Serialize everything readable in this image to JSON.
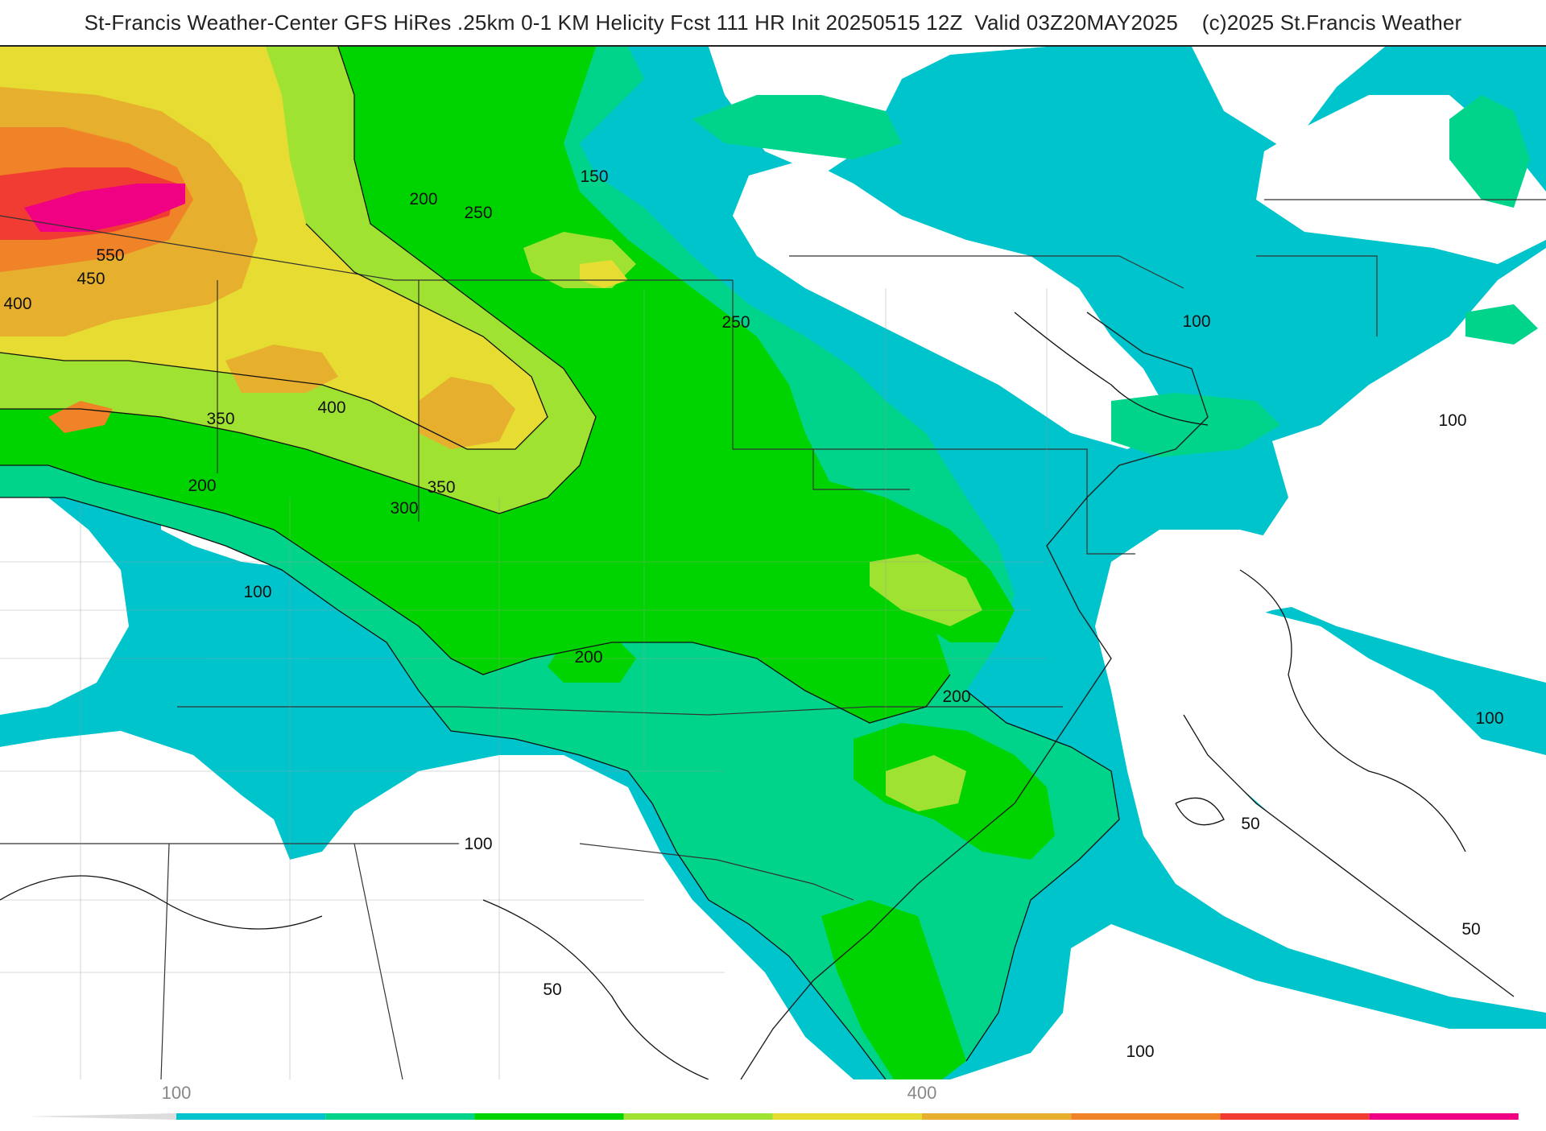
{
  "title": "St-Francis Weather-Center GFS HiRes .25km 0-1 KM Helicity Fcst 111 HR Init 20250515 12Z  Valid 03Z20MAY2025    (c)2025 St.Francis Weather",
  "colors": {
    "background": "#ffffff",
    "c100": "#00c4cc",
    "c150": "#00d48a",
    "c200": "#00d400",
    "c250": "#a0e232",
    "c300": "#e6dc32",
    "c350": "#e6af2d",
    "c400": "#f08228",
    "c450": "#f03c32",
    "c500": "#f00082"
  },
  "contour_labels": [
    {
      "text": "150"
    },
    {
      "text": "200"
    },
    {
      "text": "250"
    },
    {
      "text": "550"
    },
    {
      "text": "450"
    },
    {
      "text": "400"
    },
    {
      "text": "250"
    },
    {
      "text": "100"
    },
    {
      "text": "350"
    },
    {
      "text": "400"
    },
    {
      "text": "100"
    },
    {
      "text": "200"
    },
    {
      "text": "350"
    },
    {
      "text": "300"
    },
    {
      "text": "100"
    },
    {
      "text": "200"
    },
    {
      "text": "200"
    },
    {
      "text": "100"
    },
    {
      "text": "50"
    },
    {
      "text": "100"
    },
    {
      "text": "50"
    },
    {
      "text": "50"
    },
    {
      "text": "100"
    }
  ],
  "colorbar": {
    "ticks": [
      {
        "label": "100",
        "value": 100
      },
      {
        "label": "400",
        "value": 400
      }
    ],
    "min": 50,
    "max": 550
  }
}
